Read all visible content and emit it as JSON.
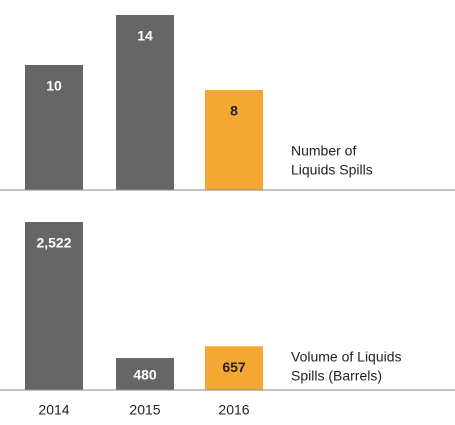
{
  "chart_data": [
    {
      "type": "bar",
      "title": [
        "Number of",
        "Liquids Spills"
      ],
      "values": [
        10,
        14,
        8
      ],
      "colors": [
        "#666666",
        "#666666",
        "#f5a733"
      ]
    },
    {
      "type": "bar",
      "title": [
        "Volume of Liquids",
        "Spills (Barrels)"
      ],
      "categories": [
        "2014",
        "2015",
        "2016"
      ],
      "values": [
        2522,
        480,
        657
      ],
      "value_labels": [
        "2,522",
        "480",
        "657"
      ],
      "colors": [
        "#666666",
        "#666666",
        "#f5a733"
      ]
    }
  ]
}
